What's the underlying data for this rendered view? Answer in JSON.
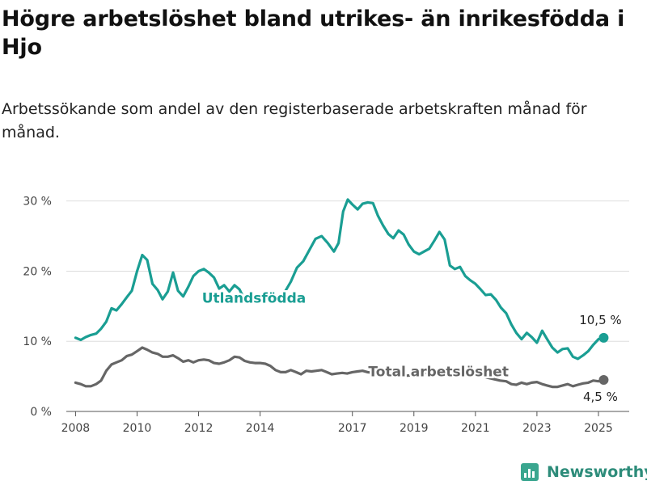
{
  "header": {
    "title": "Högre arbetslöshet bland utrikes- än inrikesfödda i Hjo",
    "subtitle": "Arbetssökande som andel av den registerbaserade arbetskraften månad för månad."
  },
  "brand": {
    "name": "Newsworthy",
    "icon": "bar-chart-logo-icon",
    "color": "#3aa68f"
  },
  "chart_data": {
    "type": "line",
    "x_unit": "year",
    "x_ticks": [
      2008,
      2010,
      2012,
      2014,
      2017,
      2019,
      2021,
      2023,
      2025
    ],
    "xlim": [
      2007.7,
      2026.0
    ],
    "ylim": [
      0,
      31
    ],
    "y_ticks": [
      0,
      10,
      20,
      30
    ],
    "y_tick_labels": [
      "0 %",
      "10 %",
      "20 %",
      "30 %"
    ],
    "grid": true,
    "series": [
      {
        "name": "Utlandsfödda",
        "color": "#1a9e93",
        "end_label": "10,5 %",
        "points": [
          [
            2008.0,
            10.5
          ],
          [
            2008.17,
            10.2
          ],
          [
            2008.33,
            10.6
          ],
          [
            2008.5,
            10.9
          ],
          [
            2008.67,
            11.1
          ],
          [
            2008.83,
            11.8
          ],
          [
            2009.0,
            12.8
          ],
          [
            2009.17,
            14.7
          ],
          [
            2009.33,
            14.4
          ],
          [
            2009.5,
            15.3
          ],
          [
            2009.67,
            16.3
          ],
          [
            2009.83,
            17.2
          ],
          [
            2010.0,
            20.0
          ],
          [
            2010.17,
            22.3
          ],
          [
            2010.33,
            21.6
          ],
          [
            2010.5,
            18.2
          ],
          [
            2010.67,
            17.3
          ],
          [
            2010.83,
            16.0
          ],
          [
            2011.0,
            17.1
          ],
          [
            2011.17,
            19.8
          ],
          [
            2011.33,
            17.2
          ],
          [
            2011.5,
            16.4
          ],
          [
            2011.67,
            17.8
          ],
          [
            2011.83,
            19.3
          ],
          [
            2012.0,
            20.0
          ],
          [
            2012.17,
            20.3
          ],
          [
            2012.33,
            19.8
          ],
          [
            2012.5,
            19.1
          ],
          [
            2012.67,
            17.5
          ],
          [
            2012.83,
            18.0
          ],
          [
            2013.0,
            17.1
          ],
          [
            2013.17,
            18.0
          ],
          [
            2013.33,
            17.4
          ],
          [
            2013.5,
            15.9
          ],
          [
            2013.67,
            16.3
          ],
          [
            2013.83,
            16.5
          ],
          [
            2014.0,
            16.5
          ],
          [
            2014.2,
            16.0
          ],
          [
            2014.4,
            16.6
          ],
          [
            2014.6,
            16.0
          ],
          [
            2014.8,
            17.0
          ],
          [
            2015.0,
            18.5
          ],
          [
            2015.2,
            20.5
          ],
          [
            2015.4,
            21.4
          ],
          [
            2015.6,
            23.0
          ],
          [
            2015.8,
            24.6
          ],
          [
            2016.0,
            25.0
          ],
          [
            2016.2,
            24.0
          ],
          [
            2016.4,
            22.8
          ],
          [
            2016.55,
            24.0
          ],
          [
            2016.7,
            28.5
          ],
          [
            2016.85,
            30.2
          ],
          [
            2017.0,
            29.5
          ],
          [
            2017.17,
            28.8
          ],
          [
            2017.33,
            29.6
          ],
          [
            2017.5,
            29.8
          ],
          [
            2017.67,
            29.7
          ],
          [
            2017.83,
            27.9
          ],
          [
            2018.0,
            26.5
          ],
          [
            2018.17,
            25.3
          ],
          [
            2018.33,
            24.7
          ],
          [
            2018.5,
            25.8
          ],
          [
            2018.67,
            25.2
          ],
          [
            2018.83,
            23.8
          ],
          [
            2019.0,
            22.8
          ],
          [
            2019.17,
            22.4
          ],
          [
            2019.33,
            22.8
          ],
          [
            2019.5,
            23.2
          ],
          [
            2019.67,
            24.4
          ],
          [
            2019.83,
            25.6
          ],
          [
            2020.0,
            24.5
          ],
          [
            2020.17,
            20.8
          ],
          [
            2020.33,
            20.3
          ],
          [
            2020.5,
            20.6
          ],
          [
            2020.67,
            19.3
          ],
          [
            2020.83,
            18.7
          ],
          [
            2021.0,
            18.2
          ],
          [
            2021.17,
            17.4
          ],
          [
            2021.33,
            16.6
          ],
          [
            2021.5,
            16.7
          ],
          [
            2021.67,
            15.9
          ],
          [
            2021.83,
            14.8
          ],
          [
            2022.0,
            14.0
          ],
          [
            2022.17,
            12.4
          ],
          [
            2022.33,
            11.2
          ],
          [
            2022.5,
            10.3
          ],
          [
            2022.67,
            11.2
          ],
          [
            2022.83,
            10.6
          ],
          [
            2023.0,
            9.8
          ],
          [
            2023.17,
            11.5
          ],
          [
            2023.33,
            10.3
          ],
          [
            2023.5,
            9.1
          ],
          [
            2023.67,
            8.4
          ],
          [
            2023.83,
            8.9
          ],
          [
            2024.0,
            9.0
          ],
          [
            2024.17,
            7.8
          ],
          [
            2024.33,
            7.5
          ],
          [
            2024.5,
            8.0
          ],
          [
            2024.67,
            8.6
          ],
          [
            2024.83,
            9.5
          ],
          [
            2025.0,
            10.3
          ],
          [
            2025.17,
            10.5
          ]
        ]
      },
      {
        "name": "Total arbetslöshet",
        "color": "#666666",
        "end_label": "4,5 %",
        "points": [
          [
            2008.0,
            4.1
          ],
          [
            2008.17,
            3.9
          ],
          [
            2008.33,
            3.6
          ],
          [
            2008.5,
            3.6
          ],
          [
            2008.67,
            3.9
          ],
          [
            2008.83,
            4.4
          ],
          [
            2009.0,
            5.8
          ],
          [
            2009.17,
            6.7
          ],
          [
            2009.33,
            7.0
          ],
          [
            2009.5,
            7.3
          ],
          [
            2009.67,
            7.9
          ],
          [
            2009.83,
            8.1
          ],
          [
            2010.0,
            8.6
          ],
          [
            2010.17,
            9.1
          ],
          [
            2010.33,
            8.8
          ],
          [
            2010.5,
            8.4
          ],
          [
            2010.67,
            8.2
          ],
          [
            2010.83,
            7.8
          ],
          [
            2011.0,
            7.8
          ],
          [
            2011.17,
            8.0
          ],
          [
            2011.33,
            7.6
          ],
          [
            2011.5,
            7.1
          ],
          [
            2011.67,
            7.3
          ],
          [
            2011.83,
            7.0
          ],
          [
            2012.0,
            7.3
          ],
          [
            2012.17,
            7.4
          ],
          [
            2012.33,
            7.3
          ],
          [
            2012.5,
            6.9
          ],
          [
            2012.67,
            6.8
          ],
          [
            2012.83,
            7.0
          ],
          [
            2013.0,
            7.3
          ],
          [
            2013.17,
            7.8
          ],
          [
            2013.33,
            7.7
          ],
          [
            2013.5,
            7.2
          ],
          [
            2013.67,
            7.0
          ],
          [
            2013.83,
            6.9
          ],
          [
            2014.0,
            6.9
          ],
          [
            2014.17,
            6.8
          ],
          [
            2014.33,
            6.5
          ],
          [
            2014.5,
            5.9
          ],
          [
            2014.67,
            5.6
          ],
          [
            2014.83,
            5.6
          ],
          [
            2015.0,
            5.9
          ],
          [
            2015.17,
            5.6
          ],
          [
            2015.33,
            5.3
          ],
          [
            2015.5,
            5.8
          ],
          [
            2015.67,
            5.7
          ],
          [
            2015.83,
            5.8
          ],
          [
            2016.0,
            5.9
          ],
          [
            2016.17,
            5.6
          ],
          [
            2016.33,
            5.3
          ],
          [
            2016.5,
            5.4
          ],
          [
            2016.67,
            5.5
          ],
          [
            2016.83,
            5.4
          ],
          [
            2017.0,
            5.6
          ],
          [
            2017.17,
            5.7
          ],
          [
            2017.33,
            5.8
          ],
          [
            2017.5,
            5.6
          ],
          [
            2017.67,
            5.5
          ],
          [
            2017.83,
            5.3
          ],
          [
            2018.0,
            5.3
          ],
          [
            2018.2,
            5.2
          ],
          [
            2018.4,
            5.2
          ],
          [
            2018.6,
            5.1
          ],
          [
            2018.8,
            5.1
          ],
          [
            2019.0,
            5.2
          ],
          [
            2019.2,
            5.3
          ],
          [
            2019.4,
            5.5
          ],
          [
            2019.6,
            5.6
          ],
          [
            2019.8,
            5.8
          ],
          [
            2020.0,
            6.0
          ],
          [
            2020.2,
            6.1
          ],
          [
            2020.4,
            5.9
          ],
          [
            2020.6,
            5.6
          ],
          [
            2020.8,
            5.4
          ],
          [
            2021.0,
            5.3
          ],
          [
            2021.2,
            5.1
          ],
          [
            2021.4,
            4.8
          ],
          [
            2021.6,
            4.6
          ],
          [
            2021.8,
            4.4
          ],
          [
            2022.0,
            4.3
          ],
          [
            2022.17,
            3.9
          ],
          [
            2022.33,
            3.8
          ],
          [
            2022.5,
            4.1
          ],
          [
            2022.67,
            3.9
          ],
          [
            2022.83,
            4.1
          ],
          [
            2023.0,
            4.2
          ],
          [
            2023.17,
            3.9
          ],
          [
            2023.33,
            3.7
          ],
          [
            2023.5,
            3.5
          ],
          [
            2023.67,
            3.5
          ],
          [
            2023.83,
            3.7
          ],
          [
            2024.0,
            3.9
          ],
          [
            2024.17,
            3.6
          ],
          [
            2024.33,
            3.8
          ],
          [
            2024.5,
            4.0
          ],
          [
            2024.67,
            4.1
          ],
          [
            2024.83,
            4.4
          ],
          [
            2025.0,
            4.3
          ],
          [
            2025.17,
            4.5
          ]
        ]
      }
    ]
  }
}
